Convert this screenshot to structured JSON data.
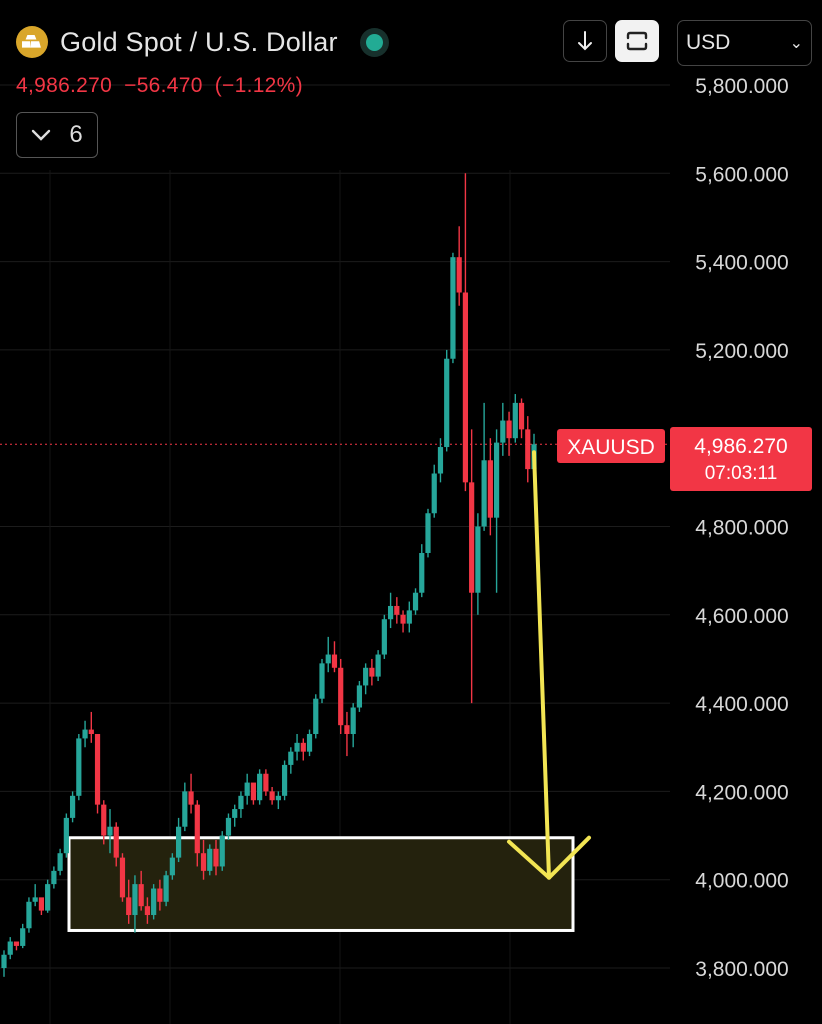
{
  "header": {
    "logo_icon": "gold-bars-icon",
    "title": "Gold Spot / U.S. Dollar",
    "market_status_color": "#22ab94",
    "last_price": "4,986.270",
    "change": "−56.470",
    "change_pct": "(−1.12%)",
    "indicators_toggle_icon": "chevron-down-icon",
    "indicators_count": "6"
  },
  "toolbar": {
    "download_icon": "arrow-down-icon",
    "fullscreen_icon": "fullscreen-icon",
    "currency": "USD"
  },
  "chart_data": {
    "type": "candlestick",
    "symbol_label": "XAUUSD",
    "last_price": "4,986.270",
    "countdown": "07:03:11",
    "up_color": "#26a69a",
    "down_color": "#f23645",
    "y_axis_labels": [
      "5,800.000",
      "5,600.000",
      "5,400.000",
      "5,200.000",
      "4,800.000",
      "4,600.000",
      "4,400.000",
      "4,200.000",
      "4,000.000",
      "3,800.000"
    ],
    "y_ticks": [
      5800,
      5600,
      5400,
      5200,
      4800,
      4600,
      4400,
      4200,
      4000,
      3800
    ],
    "ylim": [
      3780,
      5830
    ],
    "last_value": 4986.27,
    "candles": [
      [
        3800,
        3840,
        3780,
        3830
      ],
      [
        3830,
        3870,
        3820,
        3860
      ],
      [
        3860,
        3855,
        3840,
        3850
      ],
      [
        3850,
        3900,
        3845,
        3890
      ],
      [
        3890,
        3960,
        3880,
        3950
      ],
      [
        3950,
        3990,
        3940,
        3960
      ],
      [
        3960,
        3950,
        3920,
        3930
      ],
      [
        3930,
        4000,
        3925,
        3990
      ],
      [
        3990,
        4030,
        3980,
        4020
      ],
      [
        4020,
        4070,
        4010,
        4060
      ],
      [
        4060,
        4150,
        4050,
        4140
      ],
      [
        4140,
        4200,
        4130,
        4190
      ],
      [
        4190,
        4330,
        4180,
        4320
      ],
      [
        4320,
        4360,
        4300,
        4340
      ],
      [
        4340,
        4380,
        4310,
        4330
      ],
      [
        4330,
        4330,
        4150,
        4170
      ],
      [
        4170,
        4180,
        4080,
        4100
      ],
      [
        4100,
        4160,
        4060,
        4120
      ],
      [
        4120,
        4130,
        4030,
        4050
      ],
      [
        4050,
        4060,
        3950,
        3960
      ],
      [
        3960,
        4000,
        3900,
        3920
      ],
      [
        3920,
        4010,
        3880,
        3990
      ],
      [
        3990,
        4020,
        3930,
        3940
      ],
      [
        3940,
        3960,
        3900,
        3920
      ],
      [
        3920,
        3990,
        3910,
        3980
      ],
      [
        3980,
        4000,
        3930,
        3950
      ],
      [
        3950,
        4020,
        3940,
        4010
      ],
      [
        4010,
        4060,
        4000,
        4050
      ],
      [
        4050,
        4140,
        4040,
        4120
      ],
      [
        4120,
        4220,
        4110,
        4200
      ],
      [
        4200,
        4240,
        4150,
        4170
      ],
      [
        4170,
        4180,
        4030,
        4060
      ],
      [
        4060,
        4090,
        4000,
        4020
      ],
      [
        4020,
        4080,
        4010,
        4070
      ],
      [
        4070,
        4090,
        4010,
        4030
      ],
      [
        4030,
        4110,
        4020,
        4100
      ],
      [
        4100,
        4150,
        4090,
        4140
      ],
      [
        4140,
        4170,
        4120,
        4160
      ],
      [
        4160,
        4200,
        4140,
        4190
      ],
      [
        4190,
        4240,
        4170,
        4220
      ],
      [
        4220,
        4210,
        4170,
        4180
      ],
      [
        4180,
        4250,
        4170,
        4240
      ],
      [
        4240,
        4250,
        4190,
        4200
      ],
      [
        4200,
        4210,
        4170,
        4180
      ],
      [
        4180,
        4200,
        4160,
        4190
      ],
      [
        4190,
        4270,
        4180,
        4260
      ],
      [
        4260,
        4300,
        4240,
        4290
      ],
      [
        4290,
        4330,
        4270,
        4310
      ],
      [
        4310,
        4320,
        4270,
        4290
      ],
      [
        4290,
        4340,
        4280,
        4330
      ],
      [
        4330,
        4420,
        4320,
        4410
      ],
      [
        4410,
        4500,
        4400,
        4490
      ],
      [
        4490,
        4550,
        4470,
        4510
      ],
      [
        4510,
        4540,
        4470,
        4480
      ],
      [
        4480,
        4500,
        4330,
        4350
      ],
      [
        4350,
        4380,
        4280,
        4330
      ],
      [
        4330,
        4400,
        4300,
        4390
      ],
      [
        4390,
        4450,
        4380,
        4440
      ],
      [
        4440,
        4490,
        4420,
        4480
      ],
      [
        4480,
        4500,
        4440,
        4460
      ],
      [
        4460,
        4520,
        4450,
        4510
      ],
      [
        4510,
        4600,
        4500,
        4590
      ],
      [
        4590,
        4650,
        4570,
        4620
      ],
      [
        4620,
        4640,
        4580,
        4600
      ],
      [
        4600,
        4610,
        4560,
        4580
      ],
      [
        4580,
        4630,
        4560,
        4610
      ],
      [
        4610,
        4660,
        4600,
        4650
      ],
      [
        4650,
        4760,
        4640,
        4740
      ],
      [
        4740,
        4840,
        4730,
        4830
      ],
      [
        4830,
        4940,
        4820,
        4920
      ],
      [
        4920,
        5000,
        4900,
        4980
      ],
      [
        4980,
        5200,
        4970,
        5180
      ],
      [
        5180,
        5420,
        5170,
        5410
      ],
      [
        5410,
        5480,
        5300,
        5330
      ],
      [
        5330,
        5600,
        4880,
        4900
      ],
      [
        4900,
        5020,
        4400,
        4650
      ],
      [
        4650,
        4830,
        4600,
        4800
      ],
      [
        4800,
        5080,
        4790,
        4950
      ],
      [
        4950,
        5000,
        4780,
        4820
      ],
      [
        4820,
        5020,
        4650,
        4990
      ],
      [
        4990,
        5080,
        4960,
        5040
      ],
      [
        5040,
        5060,
        4960,
        5000
      ],
      [
        5000,
        5100,
        4990,
        5080
      ],
      [
        5080,
        5090,
        5000,
        5020
      ],
      [
        5020,
        5050,
        4900,
        4930
      ],
      [
        4930,
        5010,
        4920,
        4986.27
      ]
    ],
    "annotations": {
      "zone_label": "",
      "zone_range": [
        3885,
        4095
      ],
      "arrow_target": 4000
    }
  }
}
